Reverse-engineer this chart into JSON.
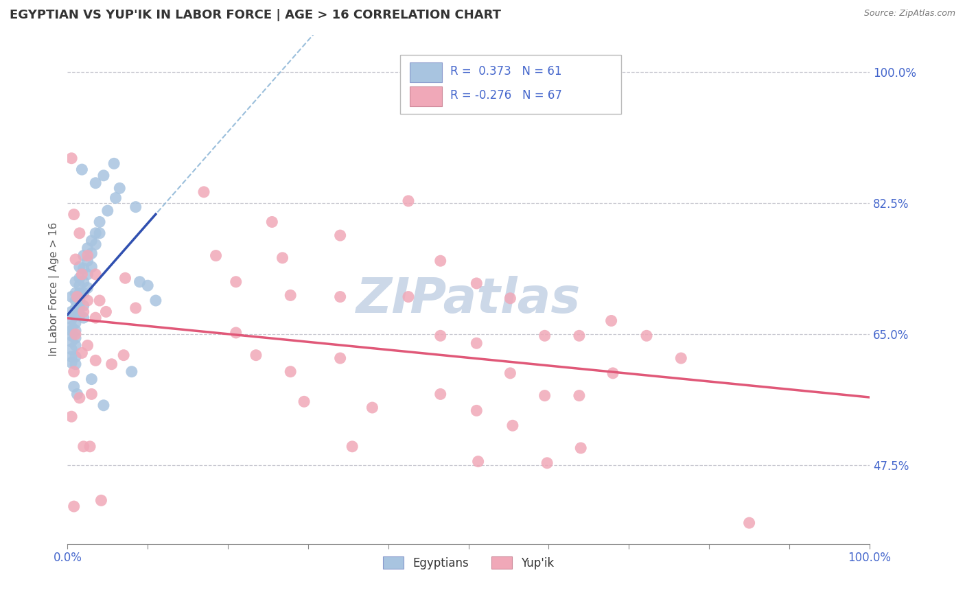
{
  "title": "EGYPTIAN VS YUP'IK IN LABOR FORCE | AGE > 16 CORRELATION CHART",
  "source_text": "Source: ZipAtlas.com",
  "ylabel": "In Labor Force | Age > 16",
  "xlim": [
    0.0,
    1.0
  ],
  "ylim": [
    0.37,
    1.05
  ],
  "background_color": "#ffffff",
  "grid_color": "#c8c8d0",
  "watermark": "ZIPatlas",
  "watermark_color": "#ccd8e8",
  "R_egyptian": 0.373,
  "N_egyptian": 61,
  "R_yupik": -0.276,
  "N_yupik": 67,
  "egyptian_color": "#a8c4e0",
  "yupik_color": "#f0a8b8",
  "trendline_egyptian_color": "#3050b0",
  "trendline_yupik_color": "#e05878",
  "trendline_dashed_color": "#90b8d8",
  "axis_label_color": "#4466cc",
  "text_color": "#333333",
  "legend_text_color": "#222222",
  "legend_r_color": "#4466cc",
  "ytick_positions": [
    0.475,
    0.65,
    0.825,
    1.0
  ],
  "ytick_labels": [
    "47.5%",
    "65.0%",
    "82.5%",
    "100.0%"
  ],
  "xtick_positions": [
    0.0,
    0.1,
    0.2,
    0.3,
    0.4,
    0.5,
    0.6,
    0.7,
    0.8,
    0.9,
    1.0
  ],
  "egyptian_scatter": [
    [
      0.005,
      0.7
    ],
    [
      0.005,
      0.68
    ],
    [
      0.005,
      0.67
    ],
    [
      0.005,
      0.66
    ],
    [
      0.005,
      0.655
    ],
    [
      0.005,
      0.648
    ],
    [
      0.005,
      0.64
    ],
    [
      0.005,
      0.63
    ],
    [
      0.005,
      0.62
    ],
    [
      0.005,
      0.612
    ],
    [
      0.01,
      0.72
    ],
    [
      0.01,
      0.705
    ],
    [
      0.01,
      0.695
    ],
    [
      0.01,
      0.685
    ],
    [
      0.01,
      0.675
    ],
    [
      0.01,
      0.665
    ],
    [
      0.01,
      0.655
    ],
    [
      0.01,
      0.645
    ],
    [
      0.01,
      0.635
    ],
    [
      0.01,
      0.62
    ],
    [
      0.01,
      0.61
    ],
    [
      0.015,
      0.74
    ],
    [
      0.015,
      0.725
    ],
    [
      0.015,
      0.715
    ],
    [
      0.015,
      0.705
    ],
    [
      0.015,
      0.695
    ],
    [
      0.015,
      0.685
    ],
    [
      0.015,
      0.675
    ],
    [
      0.02,
      0.755
    ],
    [
      0.02,
      0.738
    ],
    [
      0.02,
      0.72
    ],
    [
      0.02,
      0.705
    ],
    [
      0.02,
      0.688
    ],
    [
      0.02,
      0.672
    ],
    [
      0.025,
      0.765
    ],
    [
      0.025,
      0.748
    ],
    [
      0.025,
      0.73
    ],
    [
      0.025,
      0.712
    ],
    [
      0.03,
      0.775
    ],
    [
      0.03,
      0.758
    ],
    [
      0.03,
      0.74
    ],
    [
      0.035,
      0.785
    ],
    [
      0.035,
      0.77
    ],
    [
      0.04,
      0.8
    ],
    [
      0.04,
      0.785
    ],
    [
      0.05,
      0.815
    ],
    [
      0.06,
      0.832
    ],
    [
      0.065,
      0.845
    ],
    [
      0.08,
      0.6
    ],
    [
      0.09,
      0.72
    ],
    [
      0.1,
      0.715
    ],
    [
      0.11,
      0.695
    ],
    [
      0.03,
      0.59
    ],
    [
      0.045,
      0.555
    ],
    [
      0.012,
      0.57
    ],
    [
      0.008,
      0.58
    ],
    [
      0.035,
      0.852
    ],
    [
      0.045,
      0.862
    ],
    [
      0.058,
      0.878
    ],
    [
      0.085,
      0.82
    ],
    [
      0.018,
      0.87
    ]
  ],
  "yupik_scatter": [
    [
      0.005,
      0.885
    ],
    [
      0.008,
      0.81
    ],
    [
      0.01,
      0.75
    ],
    [
      0.012,
      0.7
    ],
    [
      0.01,
      0.65
    ],
    [
      0.008,
      0.6
    ],
    [
      0.005,
      0.54
    ],
    [
      0.008,
      0.42
    ],
    [
      0.015,
      0.785
    ],
    [
      0.018,
      0.73
    ],
    [
      0.02,
      0.68
    ],
    [
      0.018,
      0.625
    ],
    [
      0.015,
      0.565
    ],
    [
      0.02,
      0.5
    ],
    [
      0.025,
      0.755
    ],
    [
      0.025,
      0.695
    ],
    [
      0.025,
      0.635
    ],
    [
      0.03,
      0.57
    ],
    [
      0.028,
      0.5
    ],
    [
      0.035,
      0.73
    ],
    [
      0.035,
      0.672
    ],
    [
      0.035,
      0.615
    ],
    [
      0.04,
      0.695
    ],
    [
      0.042,
      0.428
    ],
    [
      0.048,
      0.68
    ],
    [
      0.055,
      0.61
    ],
    [
      0.072,
      0.725
    ],
    [
      0.07,
      0.622
    ],
    [
      0.085,
      0.685
    ],
    [
      0.17,
      0.84
    ],
    [
      0.185,
      0.755
    ],
    [
      0.21,
      0.72
    ],
    [
      0.21,
      0.652
    ],
    [
      0.235,
      0.622
    ],
    [
      0.255,
      0.8
    ],
    [
      0.268,
      0.752
    ],
    [
      0.278,
      0.702
    ],
    [
      0.278,
      0.6
    ],
    [
      0.295,
      0.56
    ],
    [
      0.34,
      0.782
    ],
    [
      0.34,
      0.7
    ],
    [
      0.34,
      0.618
    ],
    [
      0.355,
      0.5
    ],
    [
      0.38,
      0.552
    ],
    [
      0.425,
      0.828
    ],
    [
      0.425,
      0.7
    ],
    [
      0.465,
      0.748
    ],
    [
      0.465,
      0.648
    ],
    [
      0.465,
      0.57
    ],
    [
      0.51,
      0.718
    ],
    [
      0.51,
      0.638
    ],
    [
      0.51,
      0.548
    ],
    [
      0.512,
      0.48
    ],
    [
      0.552,
      0.698
    ],
    [
      0.552,
      0.598
    ],
    [
      0.555,
      0.528
    ],
    [
      0.595,
      0.648
    ],
    [
      0.595,
      0.568
    ],
    [
      0.598,
      0.478
    ],
    [
      0.638,
      0.648
    ],
    [
      0.638,
      0.568
    ],
    [
      0.64,
      0.498
    ],
    [
      0.678,
      0.668
    ],
    [
      0.68,
      0.598
    ],
    [
      0.722,
      0.648
    ],
    [
      0.765,
      0.618
    ],
    [
      0.85,
      0.398
    ]
  ]
}
